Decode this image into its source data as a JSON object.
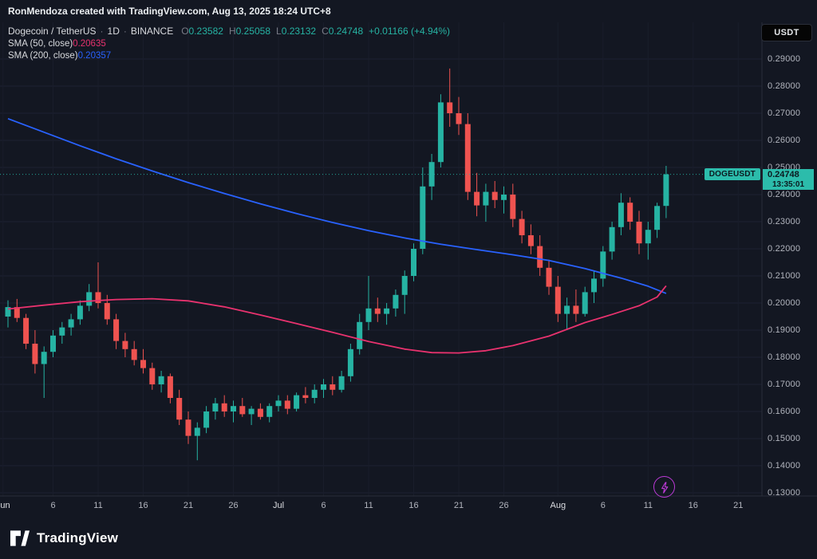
{
  "top_bar": {
    "attribution": "RonMendoza created with TradingView.com, Aug 13, 2025 18:24 UTC+8"
  },
  "currency_button": {
    "label": "USDT"
  },
  "legend": {
    "symbol": "Dogecoin / TetherUS",
    "sep": "·",
    "interval": "1D",
    "exchange": "BINANCE",
    "ohlc": {
      "o_label": "O",
      "o": "0.23582",
      "h_label": "H",
      "h": "0.25058",
      "l_label": "L",
      "l": "0.23132",
      "c_label": "C",
      "c": "0.24748",
      "change": "+0.01166 (+4.94%)"
    },
    "sma50_label": "SMA (50, close)",
    "sma50_value": "0.20635",
    "sma200_label": "SMA (200, close)",
    "sma200_value": "0.20357"
  },
  "price_label": {
    "symbol": "DOGEUSDT",
    "price": "0.24748",
    "countdown": "13:35:01"
  },
  "footer": {
    "brand": "TradingView"
  },
  "colors": {
    "bg": "#131722",
    "grid": "#1e2232",
    "grid_v": "#191d2b",
    "sep": "#2a2e39",
    "up": "#26b3a3",
    "down": "#ef5350",
    "sma50": "#e8326e",
    "sma200": "#2962ff",
    "badge_bg": "#2cbcab",
    "badge_text": "#0c1a20",
    "axis_text": "#b2b5be",
    "accent": "#bd3ad8"
  },
  "chart_data": {
    "type": "candlestick",
    "symbol": "DOGEUSDT",
    "exchange": "BINANCE",
    "interval": "1D",
    "last_price": 0.24748,
    "ylim": [
      0.13,
      0.29
    ],
    "y_ticks": [
      0.29,
      0.28,
      0.27,
      0.26,
      0.25,
      0.24,
      0.23,
      0.22,
      0.21,
      0.2,
      0.19,
      0.18,
      0.17,
      0.16,
      0.15,
      0.14,
      0.13
    ],
    "time_labels": [
      {
        "i": -0.55,
        "l": "Jun",
        "m": true
      },
      {
        "i": 5,
        "l": "6"
      },
      {
        "i": 10,
        "l": "11"
      },
      {
        "i": 15,
        "l": "16"
      },
      {
        "i": 20,
        "l": "21"
      },
      {
        "i": 25,
        "l": "26"
      },
      {
        "i": 30,
        "l": "Jul",
        "m": true
      },
      {
        "i": 35,
        "l": "6"
      },
      {
        "i": 40,
        "l": "11"
      },
      {
        "i": 45,
        "l": "16"
      },
      {
        "i": 50,
        "l": "21"
      },
      {
        "i": 55,
        "l": "26"
      },
      {
        "i": 61,
        "l": "Aug",
        "m": true
      },
      {
        "i": 66,
        "l": "6"
      },
      {
        "i": 71,
        "l": "11"
      },
      {
        "i": 76,
        "l": "16"
      },
      {
        "i": 81,
        "l": "21"
      }
    ],
    "ohlc": [
      [
        "Jun 1",
        0.195,
        0.201,
        0.191,
        0.1985
      ],
      [
        "Jun 2",
        0.1985,
        0.2015,
        0.193,
        0.1945
      ],
      [
        "Jun 3",
        0.1945,
        0.196,
        0.183,
        0.185
      ],
      [
        "Jun 4",
        0.185,
        0.19,
        0.174,
        0.1775
      ],
      [
        "Jun 5",
        0.1775,
        0.184,
        0.165,
        0.182
      ],
      [
        "Jun 6",
        0.182,
        0.19,
        0.18,
        0.188
      ],
      [
        "Jun 7",
        0.188,
        0.193,
        0.185,
        0.191
      ],
      [
        "Jun 8",
        0.191,
        0.196,
        0.188,
        0.194
      ],
      [
        "Jun 9",
        0.194,
        0.201,
        0.192,
        0.199
      ],
      [
        "Jun 10",
        0.199,
        0.207,
        0.197,
        0.204
      ],
      [
        "Jun 11",
        0.204,
        0.215,
        0.198,
        0.2
      ],
      [
        "Jun 12",
        0.2,
        0.203,
        0.192,
        0.194
      ],
      [
        "Jun 13",
        0.194,
        0.196,
        0.183,
        0.186
      ],
      [
        "Jun 14",
        0.186,
        0.189,
        0.18,
        0.183
      ],
      [
        "Jun 15",
        0.183,
        0.186,
        0.177,
        0.179
      ],
      [
        "Jun 16",
        0.179,
        0.183,
        0.174,
        0.176
      ],
      [
        "Jun 17",
        0.176,
        0.178,
        0.168,
        0.17
      ],
      [
        "Jun 18",
        0.17,
        0.175,
        0.167,
        0.173
      ],
      [
        "Jun 19",
        0.173,
        0.174,
        0.163,
        0.165
      ],
      [
        "Jun 20",
        0.165,
        0.168,
        0.155,
        0.157
      ],
      [
        "Jun 21",
        0.157,
        0.16,
        0.148,
        0.151
      ],
      [
        "Jun 22",
        0.151,
        0.156,
        0.142,
        0.154
      ],
      [
        "Jun 23",
        0.154,
        0.162,
        0.152,
        0.16
      ],
      [
        "Jun 24",
        0.16,
        0.165,
        0.157,
        0.163
      ],
      [
        "Jun 25",
        0.163,
        0.166,
        0.158,
        0.16
      ],
      [
        "Jun 26",
        0.16,
        0.164,
        0.156,
        0.162
      ],
      [
        "Jun 27",
        0.162,
        0.165,
        0.158,
        0.159
      ],
      [
        "Jun 28",
        0.159,
        0.162,
        0.155,
        0.161
      ],
      [
        "Jun 29",
        0.161,
        0.163,
        0.157,
        0.158
      ],
      [
        "Jun 30",
        0.158,
        0.163,
        0.156,
        0.162
      ],
      [
        "Jul 1",
        0.162,
        0.166,
        0.16,
        0.164
      ],
      [
        "Jul 2",
        0.164,
        0.166,
        0.159,
        0.161
      ],
      [
        "Jul 3",
        0.161,
        0.167,
        0.16,
        0.166
      ],
      [
        "Jul 4",
        0.166,
        0.169,
        0.163,
        0.165
      ],
      [
        "Jul 5",
        0.165,
        0.17,
        0.163,
        0.168
      ],
      [
        "Jul 6",
        0.168,
        0.172,
        0.165,
        0.17
      ],
      [
        "Jul 7",
        0.17,
        0.173,
        0.166,
        0.168
      ],
      [
        "Jul 8",
        0.168,
        0.175,
        0.167,
        0.173
      ],
      [
        "Jul 9",
        0.173,
        0.185,
        0.171,
        0.183
      ],
      [
        "Jul 10",
        0.183,
        0.196,
        0.181,
        0.193
      ],
      [
        "Jul 11",
        0.193,
        0.21,
        0.19,
        0.198
      ],
      [
        "Jul 12",
        0.198,
        0.202,
        0.193,
        0.196
      ],
      [
        "Jul 13",
        0.196,
        0.2,
        0.192,
        0.198
      ],
      [
        "Jul 14",
        0.198,
        0.205,
        0.195,
        0.203
      ],
      [
        "Jul 15",
        0.203,
        0.212,
        0.196,
        0.21
      ],
      [
        "Jul 16",
        0.21,
        0.222,
        0.208,
        0.22
      ],
      [
        "Jul 17",
        0.22,
        0.25,
        0.218,
        0.243
      ],
      [
        "Jul 18",
        0.243,
        0.255,
        0.238,
        0.252
      ],
      [
        "Jul 19",
        0.252,
        0.277,
        0.25,
        0.274
      ],
      [
        "Jul 20",
        0.274,
        0.2865,
        0.265,
        0.27
      ],
      [
        "Jul 21",
        0.27,
        0.276,
        0.262,
        0.266
      ],
      [
        "Jul 22",
        0.266,
        0.27,
        0.238,
        0.241
      ],
      [
        "Jul 23",
        0.241,
        0.248,
        0.232,
        0.236
      ],
      [
        "Jul 24",
        0.236,
        0.244,
        0.23,
        0.241
      ],
      [
        "Jul 25",
        0.241,
        0.245,
        0.235,
        0.238
      ],
      [
        "Jul 26",
        0.238,
        0.243,
        0.233,
        0.24
      ],
      [
        "Jul 27",
        0.24,
        0.244,
        0.228,
        0.231
      ],
      [
        "Jul 28",
        0.231,
        0.234,
        0.222,
        0.225
      ],
      [
        "Jul 29",
        0.225,
        0.229,
        0.218,
        0.221
      ],
      [
        "Jul 30",
        0.221,
        0.225,
        0.21,
        0.213
      ],
      [
        "Jul 31",
        0.213,
        0.216,
        0.203,
        0.206
      ],
      [
        "Aug 1",
        0.206,
        0.21,
        0.193,
        0.196
      ],
      [
        "Aug 2",
        0.196,
        0.202,
        0.19,
        0.199
      ],
      [
        "Aug 3",
        0.199,
        0.205,
        0.193,
        0.196
      ],
      [
        "Aug 4",
        0.196,
        0.206,
        0.195,
        0.204
      ],
      [
        "Aug 5",
        0.204,
        0.212,
        0.2,
        0.209
      ],
      [
        "Aug 6",
        0.209,
        0.221,
        0.206,
        0.219
      ],
      [
        "Aug 7",
        0.219,
        0.23,
        0.216,
        0.228
      ],
      [
        "Aug 8",
        0.228,
        0.2405,
        0.225,
        0.237
      ],
      [
        "Aug 9",
        0.237,
        0.239,
        0.227,
        0.23
      ],
      [
        "Aug 10",
        0.23,
        0.234,
        0.218,
        0.222
      ],
      [
        "Aug 11",
        0.222,
        0.23,
        0.216,
        0.227
      ],
      [
        "Aug 12",
        0.227,
        0.237,
        0.224,
        0.2358
      ],
      [
        "Aug 13",
        0.23582,
        0.25058,
        0.23132,
        0.24748
      ]
    ],
    "sma50": {
      "period": 50,
      "source": "close",
      "value": 0.20635,
      "points": [
        [
          0,
          0.1978
        ],
        [
          4,
          0.1992
        ],
        [
          8,
          0.2005
        ],
        [
          12,
          0.2013
        ],
        [
          16,
          0.2016
        ],
        [
          20,
          0.2008
        ],
        [
          24,
          0.1986
        ],
        [
          28,
          0.1956
        ],
        [
          32,
          0.1924
        ],
        [
          36,
          0.1892
        ],
        [
          40,
          0.1858
        ],
        [
          44,
          0.183
        ],
        [
          47,
          0.1817
        ],
        [
          50,
          0.1816
        ],
        [
          53,
          0.1824
        ],
        [
          56,
          0.1843
        ],
        [
          60,
          0.1878
        ],
        [
          64,
          0.1928
        ],
        [
          67,
          0.1958
        ],
        [
          70,
          0.199
        ],
        [
          72,
          0.2022
        ],
        [
          73,
          0.20635
        ]
      ]
    },
    "sma200": {
      "period": 200,
      "source": "close",
      "value": 0.20357,
      "points": [
        [
          0,
          0.268
        ],
        [
          4,
          0.263
        ],
        [
          8,
          0.258
        ],
        [
          12,
          0.2532
        ],
        [
          16,
          0.2487
        ],
        [
          20,
          0.2444
        ],
        [
          24,
          0.2404
        ],
        [
          28,
          0.2366
        ],
        [
          32,
          0.233
        ],
        [
          36,
          0.2297
        ],
        [
          40,
          0.2267
        ],
        [
          44,
          0.224
        ],
        [
          48,
          0.2217
        ],
        [
          52,
          0.2197
        ],
        [
          56,
          0.2178
        ],
        [
          60,
          0.2157
        ],
        [
          64,
          0.2127
        ],
        [
          68,
          0.2092
        ],
        [
          71,
          0.2062
        ],
        [
          73,
          0.20357
        ]
      ]
    }
  }
}
